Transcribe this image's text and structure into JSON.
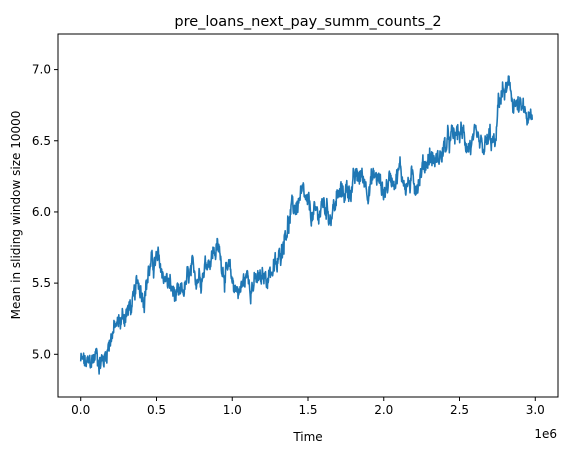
{
  "chart_data": {
    "type": "line",
    "title": "pre_loans_next_pay_summ_counts_2",
    "xlabel": "Time",
    "ylabel": "Mean in sliding window size 10000",
    "x_offset_label": "1e6",
    "xlim": [
      -0.15,
      3.15
    ],
    "ylim": [
      4.7,
      7.25
    ],
    "x_ticks": [
      0.0,
      0.5,
      1.0,
      1.5,
      2.0,
      2.5,
      3.0
    ],
    "x_tick_labels": [
      "0.0",
      "0.5",
      "1.0",
      "1.5",
      "2.0",
      "2.5",
      "3.0"
    ],
    "y_ticks": [
      5.0,
      5.5,
      6.0,
      6.5,
      7.0
    ],
    "y_tick_labels": [
      "5.0",
      "5.5",
      "6.0",
      "6.5",
      "7.0"
    ],
    "grid": false,
    "line_color": "#1f77b4",
    "series": [
      {
        "x": [
          0.0,
          0.05,
          0.1,
          0.15,
          0.2,
          0.25,
          0.3,
          0.35,
          0.38,
          0.42,
          0.45,
          0.5,
          0.55,
          0.6,
          0.65,
          0.7,
          0.75,
          0.8,
          0.85,
          0.9,
          0.95,
          1.0,
          1.05,
          1.1,
          1.15,
          1.2,
          1.25,
          1.3,
          1.35,
          1.4,
          1.45,
          1.5,
          1.55,
          1.6,
          1.65,
          1.7,
          1.75,
          1.8,
          1.85,
          1.9,
          1.95,
          2.0,
          2.05,
          2.1,
          2.15,
          2.2,
          2.25,
          2.3,
          2.35,
          2.4,
          2.45,
          2.5,
          2.55,
          2.6,
          2.65,
          2.7,
          2.74,
          2.76,
          2.8,
          2.85,
          2.9,
          2.95,
          2.98
        ],
        "values": [
          4.95,
          4.9,
          5.0,
          4.95,
          5.15,
          5.2,
          5.3,
          5.35,
          5.5,
          5.45,
          5.6,
          5.65,
          5.55,
          5.45,
          5.35,
          5.5,
          5.55,
          5.6,
          5.7,
          5.75,
          5.6,
          5.5,
          5.45,
          5.55,
          5.5,
          5.5,
          5.6,
          5.6,
          5.9,
          6.0,
          6.1,
          6.0,
          5.95,
          6.05,
          6.0,
          6.1,
          6.15,
          6.2,
          6.25,
          6.2,
          6.25,
          6.15,
          6.25,
          6.3,
          6.2,
          6.2,
          6.3,
          6.4,
          6.35,
          6.45,
          6.5,
          6.55,
          6.5,
          6.45,
          6.4,
          6.5,
          6.45,
          6.8,
          6.85,
          6.8,
          6.7,
          6.65,
          6.6
        ]
      }
    ]
  }
}
